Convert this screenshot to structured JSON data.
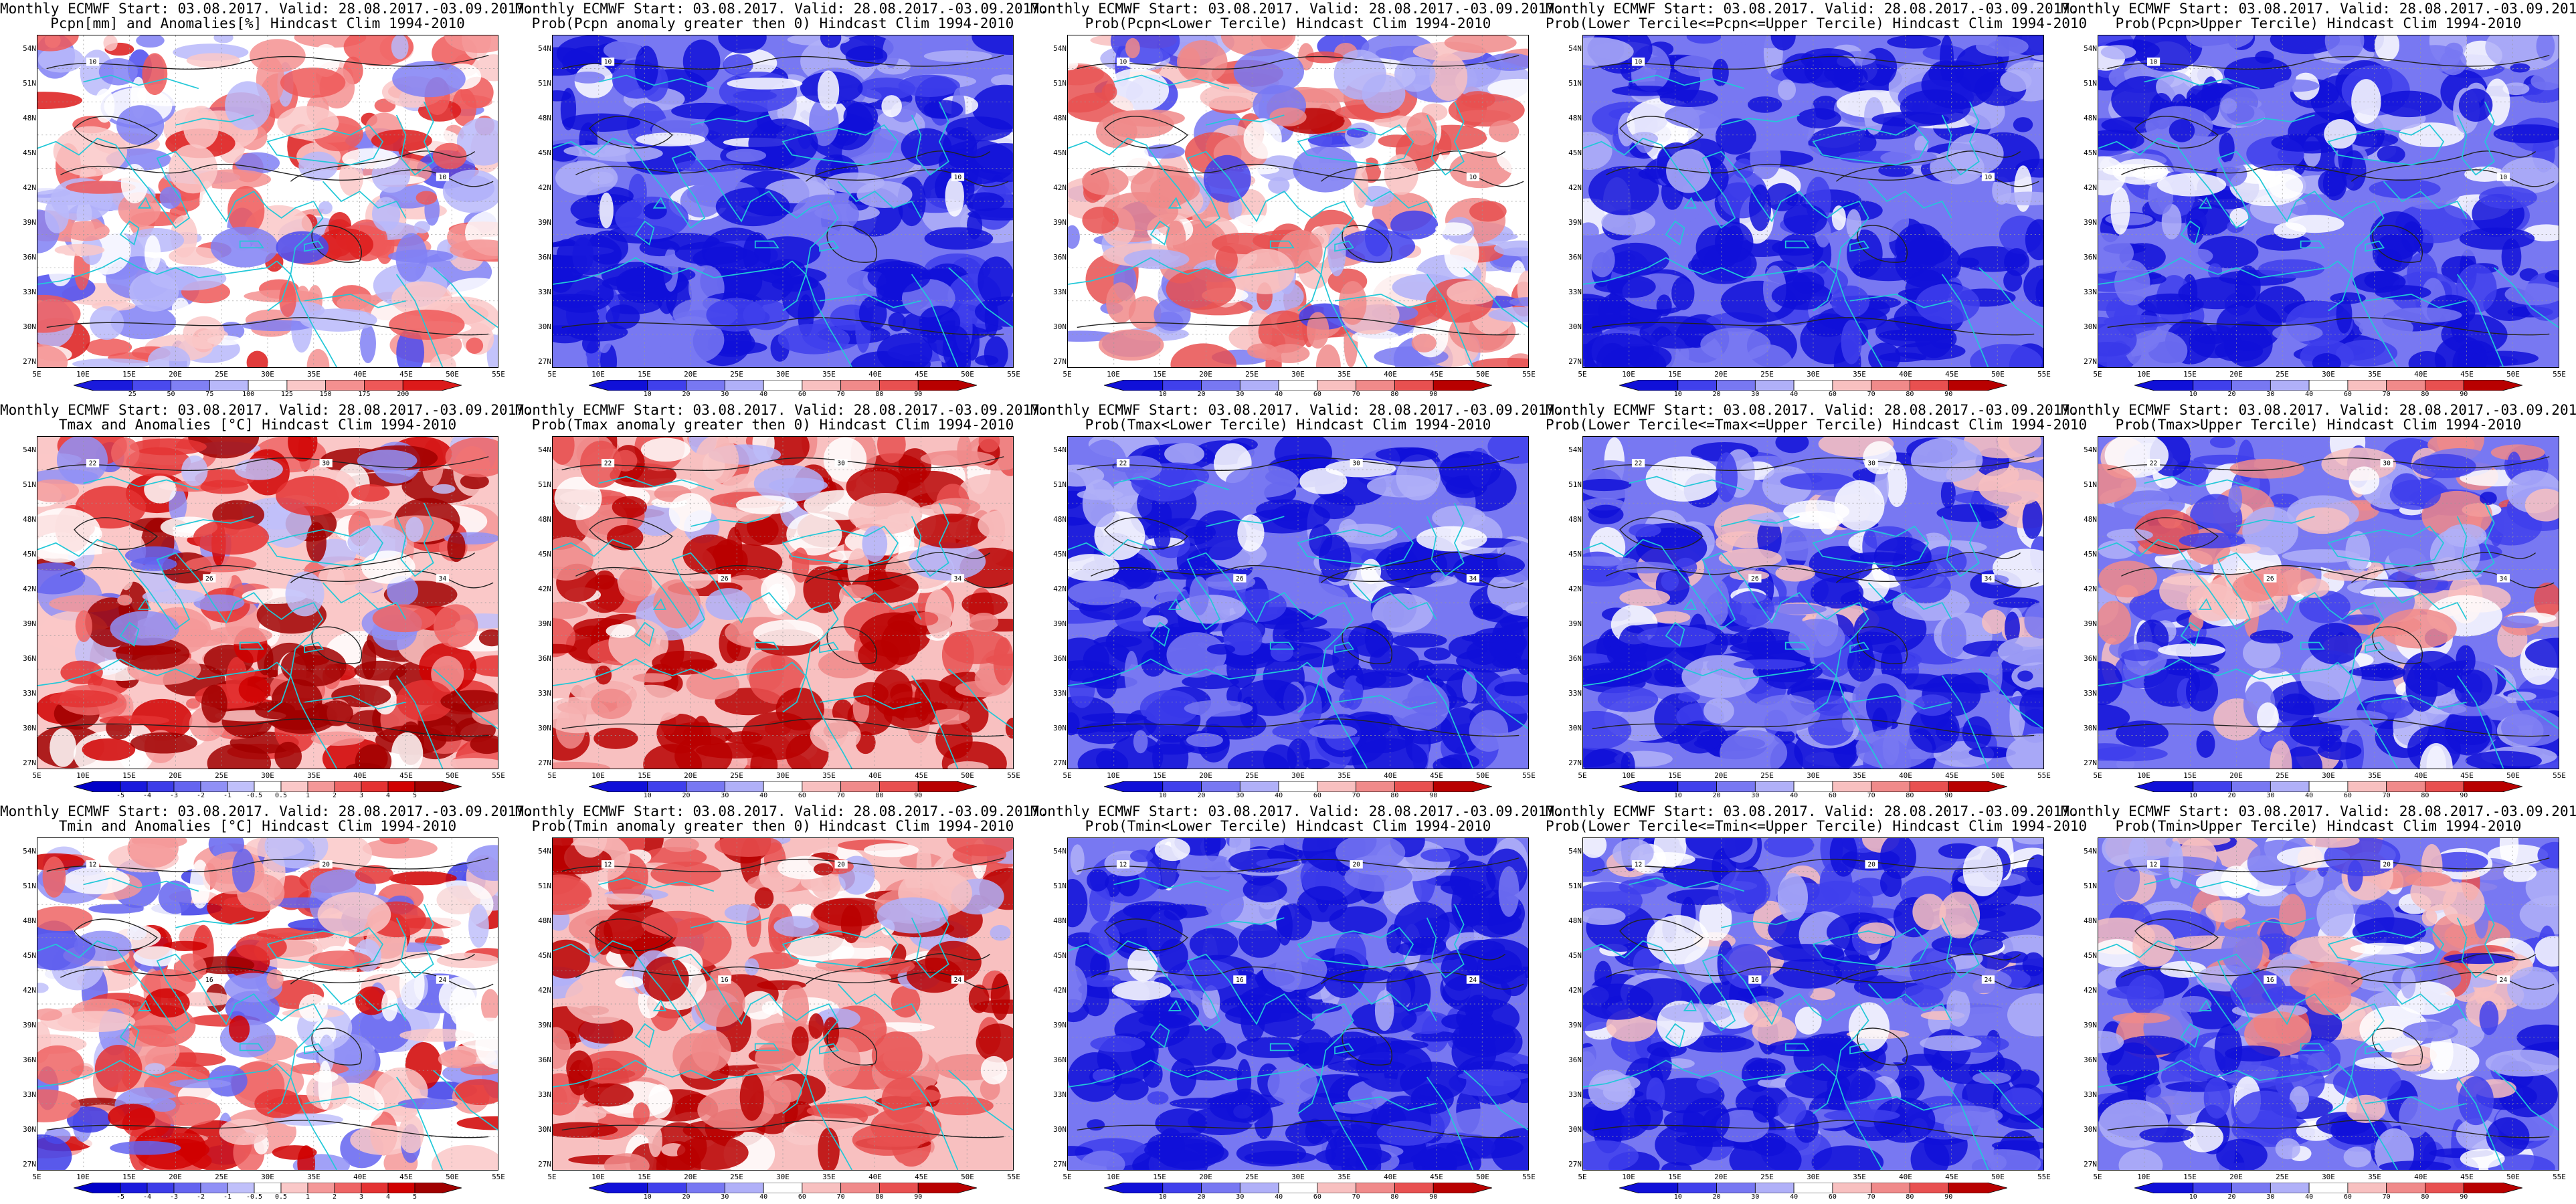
{
  "header_line": "Monthly ECMWF Start: 03.08.2017. Valid: 28.08.2017.-03.09.2017.",
  "lat_labels": [
    "54N",
    "51N",
    "48N",
    "45N",
    "42N",
    "39N",
    "36N",
    "33N",
    "30N",
    "27N"
  ],
  "lon_labels": [
    "5E",
    "10E",
    "15E",
    "20E",
    "25E",
    "30E",
    "35E",
    "40E",
    "45E",
    "50E",
    "55E"
  ],
  "colorbars": {
    "pcpn_anom": {
      "labels": [
        "25",
        "50",
        "75",
        "100",
        "125",
        "150",
        "175",
        "200"
      ],
      "colors": [
        "#1a1adc",
        "#4a4aee",
        "#8080f4",
        "#b8b8fa",
        "#ffffff",
        "#fac8c8",
        "#f49090",
        "#ee5858",
        "#dc1a1a"
      ]
    },
    "tmp_anom": {
      "labels": [
        "-5",
        "-4",
        "-3",
        "-2",
        "-1",
        "-0.5",
        "0.5",
        "1",
        "2",
        "3",
        "4",
        "5"
      ],
      "colors": [
        "#0000c8",
        "#1a1adc",
        "#3c3ce8",
        "#6464f0",
        "#9090f6",
        "#c0c0fa",
        "#ffffff",
        "#fac8c8",
        "#f49898",
        "#ee6464",
        "#e43232",
        "#d00000",
        "#a00000"
      ]
    },
    "prob": {
      "labels": [
        "10",
        "20",
        "30",
        "40",
        "60",
        "70",
        "80",
        "90"
      ],
      "colors": [
        "#1010d8",
        "#4040ec",
        "#7878f2",
        "#b0b0f8",
        "#ffffff",
        "#f8c0c0",
        "#f08a8a",
        "#e85050",
        "#b80000"
      ]
    }
  },
  "rows": [
    {
      "panels": [
        {
          "title": "Pcpn[mm] and Anomalies[%] Hindcast Clim 1994-2010",
          "scheme": "pcpn_anom",
          "bias": 0.1,
          "seed": 11,
          "cbar": "pcpn_anom",
          "contours": [
            "10",
            "10"
          ]
        },
        {
          "title": "Prob(Pcpn anomaly greater then 0) Hindcast Clim 1994-2010",
          "scheme": "prob",
          "bias": -0.55,
          "seed": 12,
          "cbar": "prob",
          "contours": [
            "10",
            "10"
          ]
        },
        {
          "title": "Prob(Pcpn<Lower Tercile) Hindcast Clim 1994-2010",
          "scheme": "prob",
          "bias": 0.05,
          "seed": 13,
          "cbar": "prob",
          "contours": [
            "10",
            "10"
          ]
        },
        {
          "title": "Prob(Lower Tercile<=Pcpn<=Upper Tercile) Hindcast Clim 1994-2010",
          "scheme": "prob",
          "bias": -0.55,
          "seed": 14,
          "cbar": "prob",
          "contours": [
            "10",
            "10"
          ]
        },
        {
          "title": "Prob(Pcpn>Upper Tercile) Hindcast Clim 1994-2010",
          "scheme": "prob",
          "bias": -0.5,
          "seed": 15,
          "cbar": "prob",
          "contours": [
            "10",
            "10"
          ]
        }
      ]
    },
    {
      "panels": [
        {
          "title": "Tmax and Anomalies [°C] Hindcast Clim 1994-2010",
          "scheme": "tmp_anom",
          "bias": 0.25,
          "seed": 21,
          "cbar": "tmp_anom",
          "contours": [
            "22",
            "26",
            "30",
            "34"
          ]
        },
        {
          "title": "Prob(Tmax anomaly greater then 0) Hindcast Clim 1994-2010",
          "scheme": "prob",
          "bias": 0.35,
          "seed": 22,
          "cbar": "prob",
          "contours": [
            "22",
            "26",
            "30",
            "34"
          ]
        },
        {
          "title": "Prob(Tmax<Lower Tercile) Hindcast Clim 1994-2010",
          "scheme": "prob",
          "bias": -0.55,
          "seed": 23,
          "cbar": "prob",
          "contours": [
            "22",
            "26",
            "30",
            "34"
          ]
        },
        {
          "title": "Prob(Lower Tercile<=Tmax<=Upper Tercile) Hindcast Clim 1994-2010",
          "scheme": "prob",
          "bias": -0.35,
          "seed": 24,
          "cbar": "prob",
          "contours": [
            "22",
            "26",
            "30",
            "34"
          ]
        },
        {
          "title": "Prob(Tmax>Upper Tercile) Hindcast Clim 1994-2010",
          "scheme": "prob",
          "bias": -0.1,
          "seed": 25,
          "cbar": "prob",
          "contours": [
            "22",
            "26",
            "30",
            "34"
          ]
        }
      ]
    },
    {
      "panels": [
        {
          "title": "Tmin and Anomalies [°C] Hindcast Clim 1994-2010",
          "scheme": "tmp_anom",
          "bias": 0.1,
          "seed": 31,
          "cbar": "tmp_anom",
          "contours": [
            "12",
            "16",
            "20",
            "24"
          ]
        },
        {
          "title": "Prob(Tmin anomaly greater then 0) Hindcast Clim 1994-2010",
          "scheme": "prob",
          "bias": 0.3,
          "seed": 32,
          "cbar": "prob",
          "contours": [
            "12",
            "16",
            "20",
            "24"
          ]
        },
        {
          "title": "Prob(Tmin<Lower Tercile) Hindcast Clim 1994-2010",
          "scheme": "prob",
          "bias": -0.6,
          "seed": 33,
          "cbar": "prob",
          "contours": [
            "12",
            "16",
            "20",
            "24"
          ]
        },
        {
          "title": "Prob(Lower Tercile<=Tmin<=Upper Tercile) Hindcast Clim 1994-2010",
          "scheme": "prob",
          "bias": -0.35,
          "seed": 34,
          "cbar": "prob",
          "contours": [
            "12",
            "16",
            "20",
            "24"
          ]
        },
        {
          "title": "Prob(Tmin>Upper Tercile) Hindcast Clim 1994-2010",
          "scheme": "prob",
          "bias": -0.1,
          "seed": 35,
          "cbar": "prob",
          "contours": [
            "12",
            "16",
            "20",
            "24"
          ]
        }
      ]
    }
  ]
}
